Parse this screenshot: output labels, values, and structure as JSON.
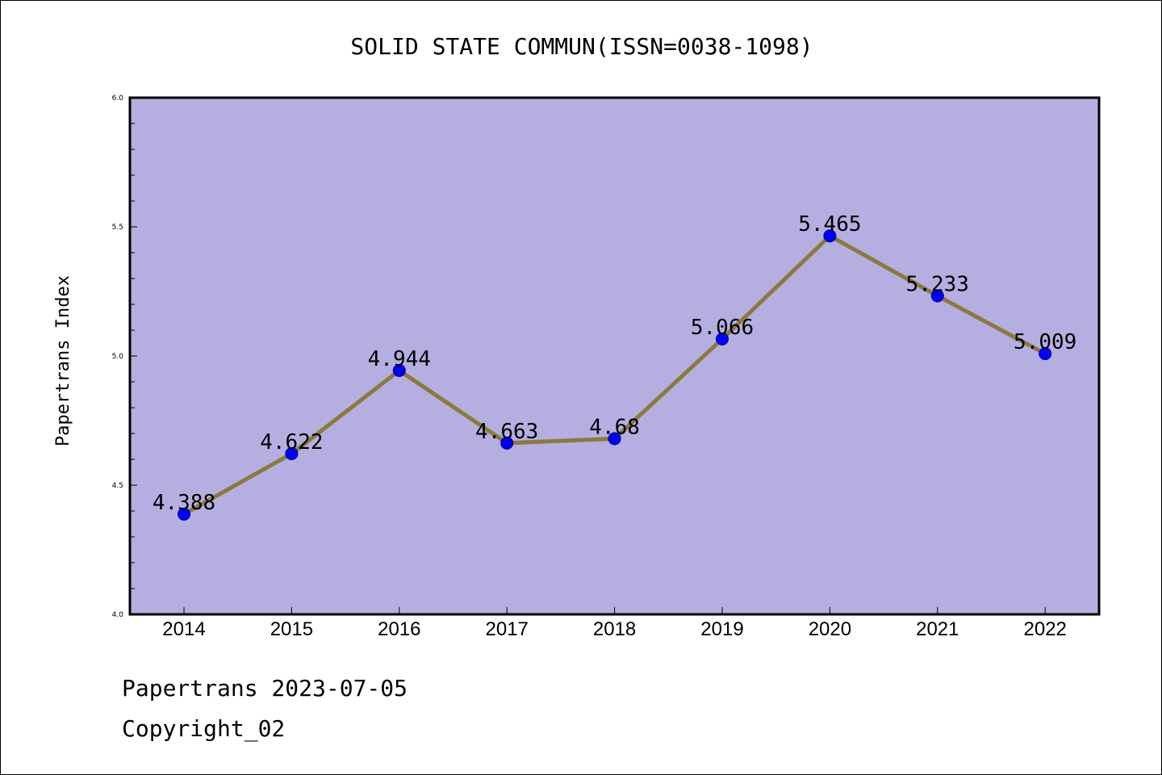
{
  "chart_data": {
    "type": "line",
    "title": "SOLID STATE COMMUN(ISSN=0038-1098)",
    "xlabel": "",
    "ylabel": "Papertrans Index",
    "categories": [
      "2014",
      "2015",
      "2016",
      "2017",
      "2018",
      "2019",
      "2020",
      "2021",
      "2022"
    ],
    "values": [
      4.388,
      4.622,
      4.944,
      4.663,
      4.68,
      5.066,
      5.465,
      5.233,
      5.009
    ],
    "data_labels": [
      "4.388",
      "4.622",
      "4.944",
      "4.663",
      "4.68",
      "5.066",
      "5.465",
      "5.233",
      "5.009"
    ],
    "ylim": [
      4.0,
      6.0
    ],
    "yticks": [
      "4.0",
      "4.5",
      "5.0",
      "5.5",
      "6.0"
    ],
    "grid": false,
    "colors": {
      "plot_background": "#b5afe1",
      "line": "#8b7a3a",
      "marker": "#0000ff"
    }
  },
  "footer": {
    "date_line": "Papertrans 2023-07-05",
    "copyright_line": "Copyright_02"
  }
}
